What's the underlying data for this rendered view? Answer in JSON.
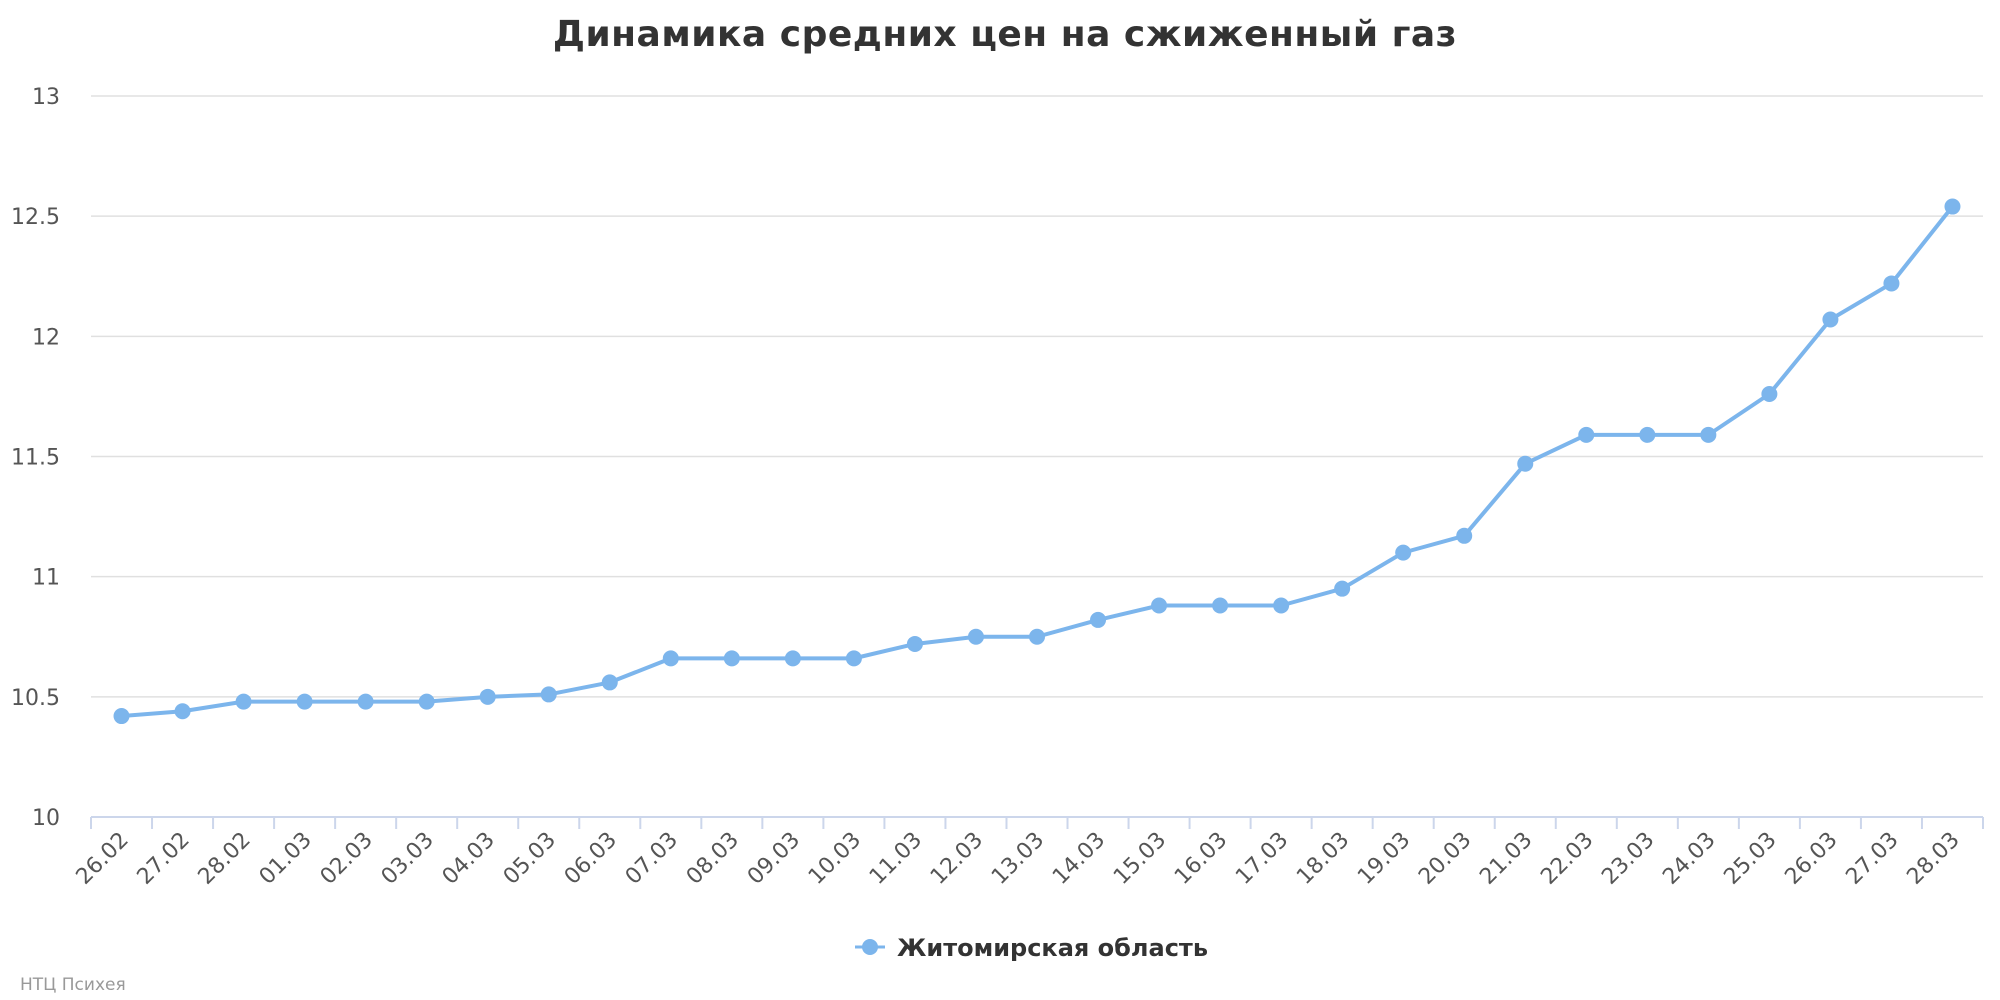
{
  "chart_data": {
    "type": "line",
    "title": "Динамика средних цен на сжиженный газ",
    "xlabel": "",
    "ylabel": "",
    "categories": [
      "26.02",
      "27.02",
      "28.02",
      "01.03",
      "02.03",
      "03.03",
      "04.03",
      "05.03",
      "06.03",
      "07.03",
      "08.03",
      "09.03",
      "10.03",
      "11.03",
      "12.03",
      "13.03",
      "14.03",
      "15.03",
      "16.03",
      "17.03",
      "18.03",
      "19.03",
      "20.03",
      "21.03",
      "22.03",
      "23.03",
      "24.03",
      "25.03",
      "26.03",
      "27.03",
      "28.03"
    ],
    "series": [
      {
        "name": "Житомирская область",
        "color": "#7cb5ec",
        "values": [
          10.42,
          10.44,
          10.48,
          10.48,
          10.48,
          10.48,
          10.5,
          10.51,
          10.56,
          10.66,
          10.66,
          10.66,
          10.66,
          10.72,
          10.75,
          10.75,
          10.82,
          10.88,
          10.88,
          10.88,
          10.95,
          11.1,
          11.17,
          11.47,
          11.59,
          11.59,
          11.59,
          11.76,
          12.07,
          12.22,
          12.54
        ]
      }
    ],
    "ylim": [
      10,
      13
    ],
    "yticks": [
      "10",
      "10.5",
      "11",
      "11.5",
      "12",
      "12.5",
      "13"
    ],
    "grid": true,
    "legend_position": "bottom-center"
  },
  "credits": "НТЦ Психея"
}
